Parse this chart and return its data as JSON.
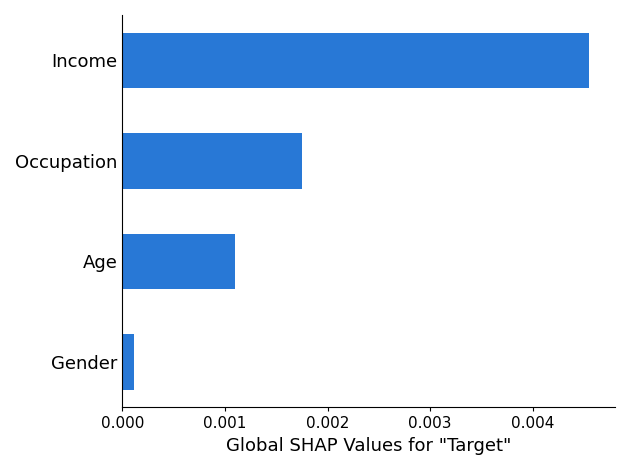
{
  "categories": [
    "Gender",
    "Age",
    "Occupation",
    "Income"
  ],
  "values": [
    0.000115,
    0.0011,
    0.00175,
    0.00455
  ],
  "bar_color": "#2878d6",
  "xlabel": "Global SHAP Values for \"Target\"",
  "xlabel_fontsize": 13,
  "tick_label_fontsize": 11,
  "ytick_label_fontsize": 13,
  "background_color": "#ffffff",
  "xlim": [
    0,
    0.0048
  ],
  "bar_height": 0.55,
  "xtick_values": [
    0.0,
    0.001,
    0.002,
    0.003,
    0.004
  ]
}
